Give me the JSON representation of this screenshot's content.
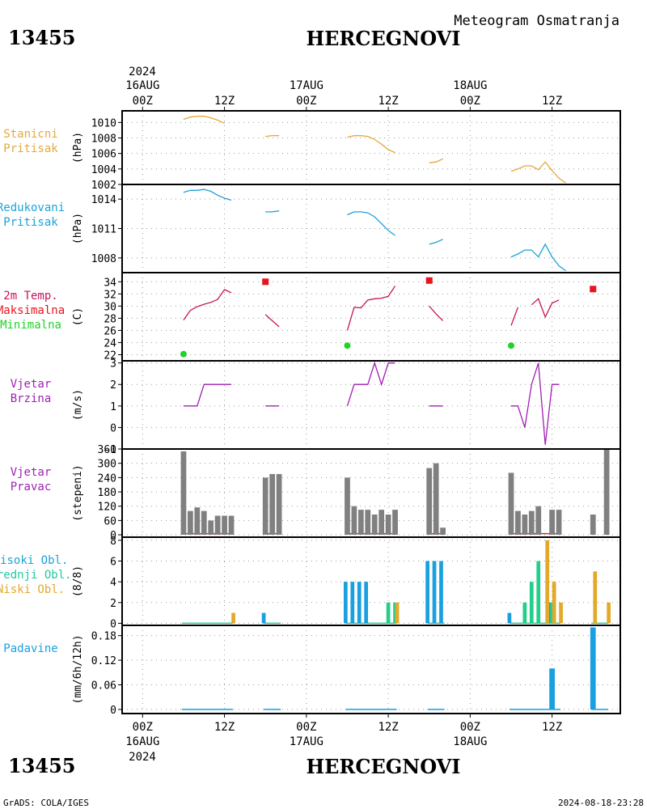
{
  "header": {
    "meteogram_title": "Meteogram Osmatranja",
    "station_id": "13455",
    "station_name": "HERCEGNOVI",
    "year": "2024",
    "footer_left": "GrADS: COLA/IGES",
    "footer_right": "2024-08-18-23:28"
  },
  "time_axis": {
    "top_ticks": [
      {
        "hour": 0,
        "label": "00Z",
        "date": "16AUG"
      },
      {
        "hour": 12,
        "label": "12Z"
      },
      {
        "hour": 24,
        "label": "00Z",
        "date": "17AUG"
      },
      {
        "hour": 36,
        "label": "12Z"
      },
      {
        "hour": 48,
        "label": "00Z",
        "date": "18AUG"
      },
      {
        "hour": 60,
        "label": "12Z"
      }
    ],
    "bottom_ticks": [
      {
        "hour": 0,
        "label": "00Z",
        "date": "16AUG"
      },
      {
        "hour": 12,
        "label": "12Z"
      },
      {
        "hour": 24,
        "label": "00Z",
        "date": "17AUG"
      },
      {
        "hour": 36,
        "label": "12Z"
      },
      {
        "hour": 48,
        "label": "00Z",
        "date": "18AUG"
      },
      {
        "hour": 60,
        "label": "12Z"
      }
    ],
    "range": [
      -3,
      70
    ]
  },
  "colors": {
    "station_pressure": "#e6a83a",
    "reduced_pressure": "#1aa3d9",
    "temp": "#c8145a",
    "tmax": "#e8131c",
    "tmin": "#22d12a",
    "wind": "#a01fb4",
    "direction": "#808080",
    "dir_line": "#c83232",
    "high_cloud": "#1aa0e0",
    "mid_cloud": "#22cf8a",
    "low_cloud": "#e3a92a",
    "precip": "#1aa0e0",
    "label_stanicni": "#e6a83a",
    "label_redukovani": "#1aa3d9",
    "label_wind": "#a01fb4",
    "label_visoki": "#1aa3d9",
    "label_srednji": "#22c9a0",
    "label_niski": "#e3a92a"
  },
  "chart_data": [
    {
      "type": "line",
      "labels": [
        "Stanicni",
        "Pritisak"
      ],
      "unit": "(hPa)",
      "ylim": [
        1002,
        1011.5
      ],
      "yticks": [
        1002,
        1004,
        1006,
        1008,
        1010
      ],
      "series": [
        {
          "points": [
            [
              6,
              1010.4
            ],
            [
              7,
              1010.7
            ],
            [
              8,
              1010.8
            ],
            [
              9,
              1010.8
            ],
            [
              10,
              1010.6
            ],
            [
              11,
              1010.3
            ],
            [
              12,
              1009.9
            ]
          ],
          "color": "station_pressure"
        },
        {
          "points": [
            [
              18,
              1008.2
            ],
            [
              19,
              1008.3
            ],
            [
              20,
              1008.3
            ]
          ],
          "color": "station_pressure"
        },
        {
          "points": [
            [
              30,
              1008.1
            ],
            [
              31,
              1008.3
            ],
            [
              32,
              1008.3
            ],
            [
              33,
              1008.2
            ],
            [
              34,
              1007.8
            ],
            [
              35,
              1007.2
            ],
            [
              36,
              1006.5
            ],
            [
              37,
              1006.1
            ]
          ],
          "color": "station_pressure"
        },
        {
          "points": [
            [
              42,
              1004.8
            ],
            [
              43,
              1004.9
            ],
            [
              44,
              1005.3
            ]
          ],
          "color": "station_pressure"
        },
        {
          "points": [
            [
              54,
              1003.7
            ],
            [
              55,
              1004.0
            ],
            [
              56,
              1004.4
            ],
            [
              57,
              1004.4
            ],
            [
              58,
              1003.9
            ],
            [
              59,
              1004.9
            ],
            [
              60,
              1003.8
            ],
            [
              61,
              1002.8
            ],
            [
              62,
              1002.2
            ]
          ],
          "color": "station_pressure"
        }
      ]
    },
    {
      "type": "line",
      "labels": [
        "Redukovani",
        "Pritisak"
      ],
      "unit": "(hPa)",
      "ylim": [
        1006.5,
        1015.5
      ],
      "yticks": [
        1008,
        1011,
        1014
      ],
      "series": [
        {
          "points": [
            [
              6,
              1014.7
            ],
            [
              7,
              1014.9
            ],
            [
              8,
              1014.9
            ],
            [
              9,
              1015.0
            ],
            [
              10,
              1014.8
            ],
            [
              11,
              1014.4
            ],
            [
              12,
              1014.1
            ],
            [
              13,
              1013.9
            ]
          ],
          "color": "reduced_pressure"
        },
        {
          "points": [
            [
              18,
              1012.7
            ],
            [
              19,
              1012.7
            ],
            [
              20,
              1012.8
            ]
          ],
          "color": "reduced_pressure"
        },
        {
          "points": [
            [
              30,
              1012.4
            ],
            [
              31,
              1012.7
            ],
            [
              32,
              1012.7
            ],
            [
              33,
              1012.6
            ],
            [
              34,
              1012.2
            ],
            [
              35,
              1011.5
            ],
            [
              36,
              1010.8
            ],
            [
              37,
              1010.3
            ]
          ],
          "color": "reduced_pressure"
        },
        {
          "points": [
            [
              42,
              1009.4
            ],
            [
              43,
              1009.6
            ],
            [
              44,
              1009.9
            ]
          ],
          "color": "reduced_pressure"
        },
        {
          "points": [
            [
              54,
              1008.1
            ],
            [
              55,
              1008.4
            ],
            [
              56,
              1008.8
            ],
            [
              57,
              1008.8
            ],
            [
              58,
              1008.1
            ],
            [
              59,
              1009.4
            ],
            [
              60,
              1008.1
            ],
            [
              61,
              1007.2
            ],
            [
              62,
              1006.7
            ]
          ],
          "color": "reduced_pressure"
        }
      ]
    },
    {
      "type": "line",
      "labels": [
        "2m Temp.",
        "Maksimalna",
        "Minimalna"
      ],
      "label_colors": [
        "temp",
        "tmax",
        "tmin"
      ],
      "unit": "(C)",
      "ylim": [
        21,
        35.5
      ],
      "yticks": [
        22,
        24,
        26,
        28,
        30,
        32,
        34
      ],
      "series": [
        {
          "points": [
            [
              6,
              27.7
            ],
            [
              7,
              29.3
            ],
            [
              8,
              29.9
            ],
            [
              9,
              30.3
            ],
            [
              10,
              30.6
            ],
            [
              11,
              31.1
            ],
            [
              12,
              32.7
            ],
            [
              13,
              32.2
            ]
          ],
          "color": "temp"
        },
        {
          "points": [
            [
              18,
              28.6
            ],
            [
              19,
              27.6
            ],
            [
              20,
              26.6
            ]
          ],
          "color": "temp"
        },
        {
          "points": [
            [
              30,
              26.0
            ],
            [
              31,
              29.8
            ],
            [
              32,
              29.7
            ],
            [
              33,
              31.0
            ],
            [
              34,
              31.2
            ],
            [
              35,
              31.3
            ],
            [
              36,
              31.6
            ],
            [
              37,
              33.3
            ]
          ],
          "color": "temp"
        },
        {
          "points": [
            [
              42,
              30.0
            ],
            [
              43,
              28.7
            ],
            [
              44,
              27.6
            ]
          ],
          "color": "temp"
        },
        {
          "points": [
            [
              54,
              26.8
            ],
            [
              55,
              29.8
            ]
          ],
          "color": "temp"
        },
        {
          "points": [
            [
              57,
              30.2
            ],
            [
              58,
              31.2
            ],
            [
              59,
              28.2
            ],
            [
              60,
              30.5
            ],
            [
              61,
              31.0
            ]
          ],
          "color": "temp"
        }
      ],
      "markers": [
        {
          "x": 18,
          "y": 34.0,
          "shape": "square",
          "color": "tmax"
        },
        {
          "x": 42,
          "y": 34.2,
          "shape": "square",
          "color": "tmax"
        },
        {
          "x": 66,
          "y": 32.8,
          "shape": "square",
          "color": "tmax"
        },
        {
          "x": 6,
          "y": 22.1,
          "shape": "circle",
          "color": "tmin"
        },
        {
          "x": 30,
          "y": 23.5,
          "shape": "circle",
          "color": "tmin"
        },
        {
          "x": 54,
          "y": 23.5,
          "shape": "circle",
          "color": "tmin"
        }
      ]
    },
    {
      "type": "line",
      "labels": [
        "Vjetar",
        "Brzina"
      ],
      "unit": "(m/s)",
      "ylim": [
        -1,
        3.1
      ],
      "yticks": [
        -1,
        0,
        1,
        2,
        3
      ],
      "series": [
        {
          "points": [
            [
              6,
              1
            ],
            [
              7,
              1
            ],
            [
              8,
              1
            ],
            [
              9,
              2
            ],
            [
              10,
              2
            ],
            [
              11,
              2
            ],
            [
              12,
              2
            ],
            [
              13,
              2
            ]
          ],
          "color": "wind"
        },
        {
          "points": [
            [
              18,
              1
            ],
            [
              19,
              1
            ],
            [
              20,
              1
            ]
          ],
          "color": "wind"
        },
        {
          "points": [
            [
              30,
              1
            ],
            [
              31,
              2
            ],
            [
              32,
              2
            ],
            [
              33,
              2
            ],
            [
              34,
              3
            ],
            [
              35,
              2
            ],
            [
              36,
              3
            ],
            [
              37,
              3
            ]
          ],
          "color": "wind"
        },
        {
          "points": [
            [
              42,
              1
            ],
            [
              43,
              1
            ],
            [
              44,
              1
            ]
          ],
          "color": "wind"
        },
        {
          "points": [
            [
              54,
              1
            ],
            [
              55,
              1
            ],
            [
              56,
              0
            ],
            [
              57,
              2
            ],
            [
              58,
              3
            ],
            [
              59,
              -0.8
            ],
            [
              60,
              2
            ],
            [
              61,
              2
            ]
          ],
          "color": "wind"
        }
      ]
    },
    {
      "type": "bar",
      "labels": [
        "Vjetar",
        "Pravac"
      ],
      "label_colors": [
        "wind",
        "wind"
      ],
      "unit": "(stepeni)",
      "ylim": [
        -10,
        360
      ],
      "yticks": [
        0,
        60,
        120,
        180,
        240,
        300,
        360
      ],
      "bar_width": 0.8,
      "series": [
        {
          "x": [
            6,
            7,
            8,
            9,
            10,
            11,
            12,
            13,
            18,
            19,
            20,
            30,
            31,
            32,
            33,
            34,
            35,
            36,
            37,
            42,
            43,
            44,
            54,
            55,
            56,
            57,
            58,
            60,
            61,
            66,
            68
          ],
          "values": [
            350,
            100,
            115,
            100,
            60,
            80,
            80,
            80,
            240,
            255,
            255,
            240,
            120,
            105,
            105,
            85,
            105,
            85,
            105,
            280,
            300,
            30,
            260,
            100,
            85,
            100,
            120,
            105,
            105,
            85,
            365
          ],
          "color": "direction"
        }
      ],
      "baseline_segments": [
        [
          6,
          13
        ],
        [
          18,
          20
        ],
        [
          30,
          37
        ],
        [
          42,
          44
        ],
        [
          54,
          61
        ]
      ],
      "baseline_value": 5
    },
    {
      "type": "bar",
      "labels": [
        "Visoki Obl.",
        "Srednji Obl.",
        "Niski Obl."
      ],
      "label_colors": [
        "label_visoki",
        "label_srednji",
        "label_niski"
      ],
      "unit": "(8/8)",
      "ylim": [
        -0.2,
        8.3
      ],
      "yticks": [
        0,
        2,
        4,
        6,
        8
      ],
      "bar_width": 0.7,
      "series": [
        {
          "name": "Visoki Obl.",
          "offset": -0.25,
          "x": [
            18,
            30,
            31,
            32,
            33,
            36,
            42,
            43,
            44,
            54,
            60
          ],
          "values": [
            1,
            4,
            4,
            4,
            4,
            0,
            6,
            6,
            6,
            1,
            2
          ],
          "color": "high_cloud"
        },
        {
          "name": "Srednji Obl.",
          "offset": 0,
          "x": [
            36,
            37,
            56,
            57,
            58,
            60
          ],
          "values": [
            2,
            2,
            2,
            4,
            6,
            2
          ],
          "color": "mid_cloud"
        },
        {
          "name": "Niski Obl.",
          "offset": 0.3,
          "x": [
            13,
            37,
            59,
            60,
            61,
            66,
            68
          ],
          "values": [
            1,
            2,
            8,
            4,
            2,
            5,
            2
          ],
          "color": "low_cloud"
        }
      ],
      "baseline_segments": [
        [
          6,
          13
        ],
        [
          18,
          20
        ],
        [
          30,
          37
        ],
        [
          42,
          44
        ],
        [
          54,
          61
        ],
        [
          66,
          68
        ]
      ]
    },
    {
      "type": "bar",
      "labels": [
        "Padavine"
      ],
      "label_colors": [
        "precip"
      ],
      "unit": "(mm/6h/12h)",
      "ylim": [
        -0.01,
        0.205
      ],
      "yticks": [
        0,
        0.06,
        0.12,
        0.18
      ],
      "ytick_labels": [
        "0",
        "0.06",
        "0.12",
        "0.18"
      ],
      "bar_width": 0.8,
      "series": [
        {
          "name": "Padavine",
          "x": [
            60,
            66
          ],
          "values": [
            0.1,
            0.2
          ],
          "color": "precip"
        }
      ],
      "baseline_segments": [
        [
          6,
          13
        ],
        [
          18,
          20
        ],
        [
          30,
          37
        ],
        [
          42,
          44
        ],
        [
          54,
          61
        ],
        [
          66,
          68
        ]
      ]
    }
  ]
}
